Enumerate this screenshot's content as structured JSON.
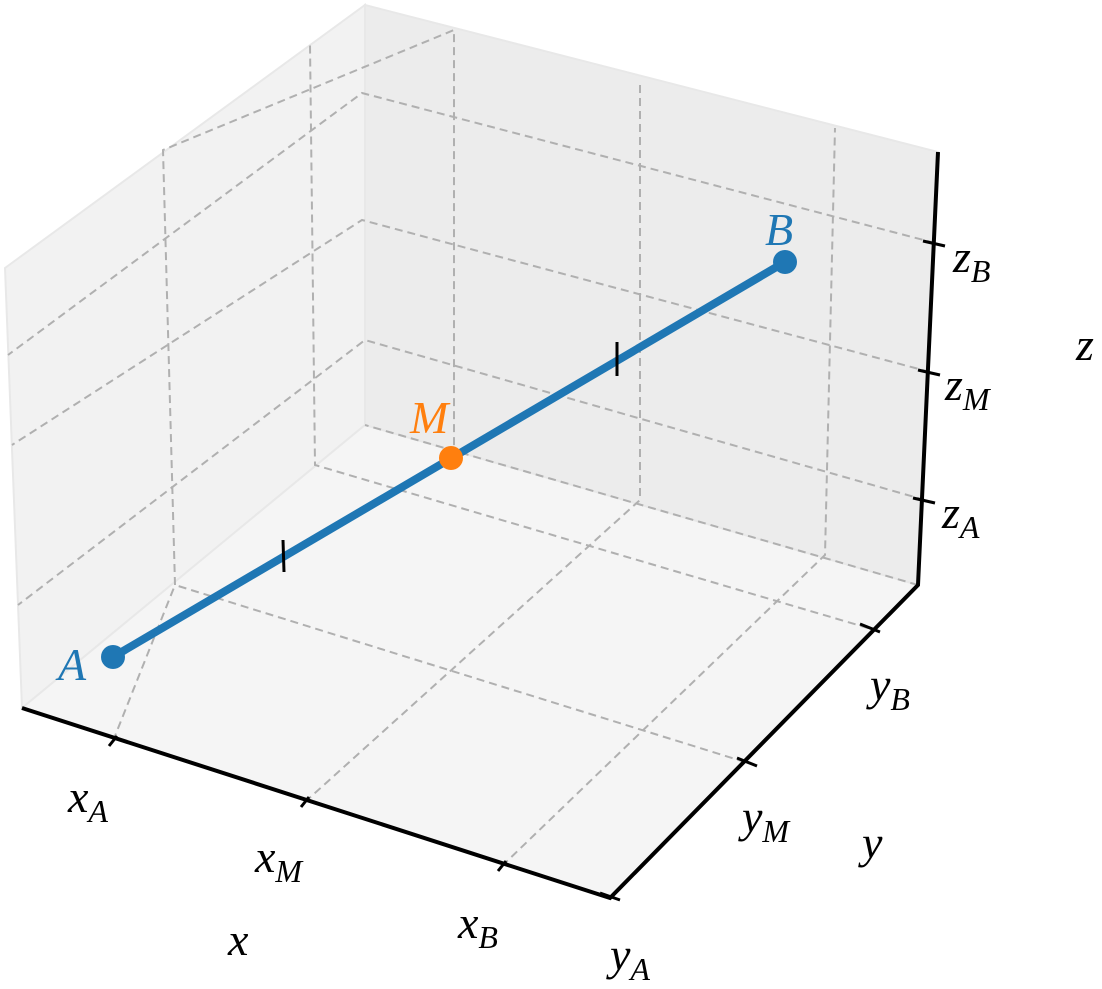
{
  "axes": {
    "x": {
      "label": "x",
      "ticks": [
        {
          "symbol": "x",
          "subscript": "A"
        },
        {
          "symbol": "x",
          "subscript": "M"
        },
        {
          "symbol": "x",
          "subscript": "B"
        }
      ]
    },
    "y": {
      "label": "y",
      "ticks": [
        {
          "symbol": "y",
          "subscript": "A"
        },
        {
          "symbol": "y",
          "subscript": "M"
        },
        {
          "symbol": "y",
          "subscript": "B"
        }
      ]
    },
    "z": {
      "label": "z",
      "ticks": [
        {
          "symbol": "z",
          "subscript": "A"
        },
        {
          "symbol": "z",
          "subscript": "M"
        },
        {
          "symbol": "z",
          "subscript": "B"
        }
      ]
    }
  },
  "points": [
    {
      "label": "A"
    },
    {
      "label": "M"
    },
    {
      "label": "B"
    }
  ]
}
